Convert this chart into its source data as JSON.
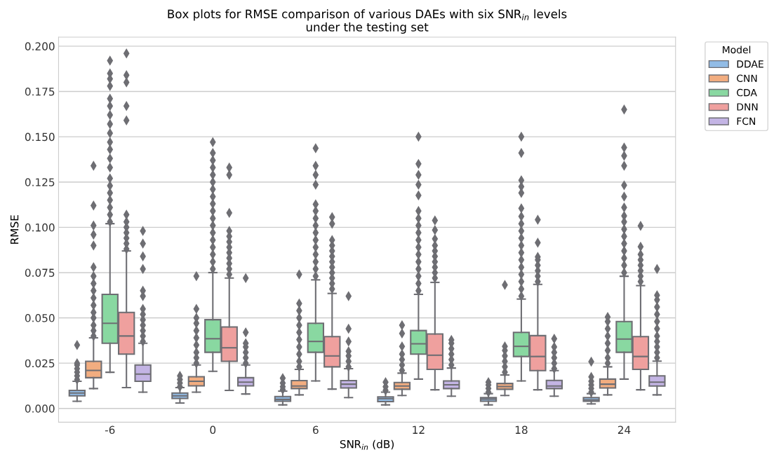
{
  "chart_data": {
    "type": "box",
    "title": "Box plots for RMSE comparison of various DAEs with six SNR$_{in}$ levels\nunder the testing set",
    "xlabel": "SNR$_{in}$ (dB)",
    "ylabel": "RMSE",
    "legend_title": "Model",
    "legend": "top right",
    "grid": "y",
    "marker": "diamond",
    "categories": [
      "-6",
      "0",
      "6",
      "12",
      "18",
      "24"
    ],
    "ylim": [
      -0.0076,
      0.205
    ],
    "yticks": [
      {
        "value": 0,
        "label": "0.000"
      },
      {
        "value": 0.025,
        "label": "0.025"
      },
      {
        "value": 0.05,
        "label": "0.050"
      },
      {
        "value": 0.075,
        "label": "0.075"
      },
      {
        "value": 0.1,
        "label": "0.100"
      },
      {
        "value": 0.125,
        "label": "0.125"
      },
      {
        "value": 0.15,
        "label": "0.150"
      },
      {
        "value": 0.175,
        "label": "0.175"
      },
      {
        "value": 0.2,
        "label": "0.200"
      }
    ],
    "series": [
      {
        "name": "DDAE",
        "color": "#92bce6",
        "boxes": [
          {
            "low": 0.004,
            "q1": 0.007,
            "median": 0.0085,
            "q3": 0.01,
            "high": 0.015,
            "outliers": [
              0.016,
              0.018,
              0.02,
              0.022,
              0.024,
              0.025,
              0.035
            ]
          },
          {
            "low": 0.003,
            "q1": 0.0055,
            "median": 0.007,
            "q3": 0.0085,
            "high": 0.0115,
            "outliers": [
              0.012,
              0.014,
              0.016,
              0.018
            ]
          },
          {
            "low": 0.002,
            "q1": 0.004,
            "median": 0.005,
            "q3": 0.0066,
            "high": 0.0096,
            "outliers": [
              0.0105,
              0.012,
              0.014,
              0.0167
            ]
          },
          {
            "low": 0.002,
            "q1": 0.0038,
            "median": 0.0054,
            "q3": 0.0064,
            "high": 0.009,
            "outliers": [
              0.01,
              0.012,
              0.0145
            ]
          },
          {
            "low": 0.002,
            "q1": 0.004,
            "median": 0.0052,
            "q3": 0.006,
            "high": 0.0082,
            "outliers": [
              0.009,
              0.011,
              0.013,
              0.0145
            ]
          },
          {
            "low": 0.0025,
            "q1": 0.004,
            "median": 0.0047,
            "q3": 0.006,
            "high": 0.0082,
            "outliers": [
              0.009,
              0.011,
              0.013,
              0.015,
              0.0174,
              0.0258
            ]
          }
        ]
      },
      {
        "name": "CNN",
        "color": "#f2ad80",
        "boxes": [
          {
            "low": 0.011,
            "q1": 0.017,
            "median": 0.021,
            "q3": 0.026,
            "high": 0.039,
            "outliers": [
              0.04,
              0.043,
              0.046,
              0.05,
              0.053,
              0.057,
              0.061,
              0.065,
              0.069,
              0.073,
              0.078,
              0.09,
              0.096,
              0.101,
              0.112,
              0.134
            ]
          },
          {
            "low": 0.009,
            "q1": 0.0125,
            "median": 0.015,
            "q3": 0.0175,
            "high": 0.024,
            "outliers": [
              0.025,
              0.028,
              0.031,
              0.035,
              0.039,
              0.043,
              0.047,
              0.05,
              0.055,
              0.073
            ]
          },
          {
            "low": 0.0075,
            "q1": 0.011,
            "median": 0.0124,
            "q3": 0.0154,
            "high": 0.0216,
            "outliers": [
              0.023,
              0.026,
              0.03,
              0.034,
              0.038,
              0.042,
              0.046,
              0.05,
              0.054,
              0.058,
              0.074
            ]
          },
          {
            "low": 0.0072,
            "q1": 0.0106,
            "median": 0.0124,
            "q3": 0.0143,
            "high": 0.0195,
            "outliers": [
              0.021,
              0.024,
              0.027,
              0.03,
              0.0343,
              0.0414,
              0.046
            ]
          },
          {
            "low": 0.0072,
            "q1": 0.0106,
            "median": 0.0121,
            "q3": 0.0138,
            "high": 0.0185,
            "outliers": [
              0.02,
              0.023,
              0.026,
              0.029,
              0.032,
              0.0343,
              0.0682
            ]
          },
          {
            "low": 0.0075,
            "q1": 0.0113,
            "median": 0.0134,
            "q3": 0.0162,
            "high": 0.023,
            "outliers": [
              0.025,
              0.028,
              0.032,
              0.036,
              0.04,
              0.044,
              0.048,
              0.0505
            ]
          }
        ]
      },
      {
        "name": "CDA",
        "color": "#89d8a1",
        "boxes": [
          {
            "low": 0.02,
            "q1": 0.036,
            "median": 0.047,
            "q3": 0.063,
            "high": 0.102,
            "outliers": [
              0.103,
              0.107,
              0.111,
              0.115,
              0.119,
              0.123,
              0.127,
              0.133,
              0.138,
              0.143,
              0.147,
              0.152,
              0.157,
              0.162,
              0.167,
              0.171,
              0.178,
              0.182,
              0.185,
              0.192
            ]
          },
          {
            "low": 0.0205,
            "q1": 0.031,
            "median": 0.0385,
            "q3": 0.049,
            "high": 0.075,
            "outliers": [
              0.077,
              0.081,
              0.085,
              0.089,
              0.093,
              0.097,
              0.101,
              0.105,
              0.109,
              0.113,
              0.117,
              0.121,
              0.125,
              0.129,
              0.133,
              0.137,
              0.141,
              0.147
            ]
          },
          {
            "low": 0.0152,
            "q1": 0.031,
            "median": 0.037,
            "q3": 0.047,
            "high": 0.071,
            "outliers": [
              0.073,
              0.077,
              0.081,
              0.085,
              0.089,
              0.093,
              0.097,
              0.101,
              0.105,
              0.109,
              0.1127,
              0.1235,
              0.129,
              0.134,
              0.1437
            ]
          },
          {
            "low": 0.0162,
            "q1": 0.03,
            "median": 0.0357,
            "q3": 0.043,
            "high": 0.063,
            "outliers": [
              0.065,
              0.069,
              0.073,
              0.077,
              0.081,
              0.085,
              0.089,
              0.093,
              0.097,
              0.101,
              0.105,
              0.109,
              0.1176,
              0.1235,
              0.129,
              0.135,
              0.15
            ]
          },
          {
            "low": 0.0152,
            "q1": 0.0287,
            "median": 0.0343,
            "q3": 0.042,
            "high": 0.0604,
            "outliers": [
              0.062,
              0.066,
              0.07,
              0.074,
              0.078,
              0.082,
              0.086,
              0.09,
              0.094,
              0.098,
              0.102,
              0.106,
              0.1105,
              0.119,
              0.1225,
              0.126,
              0.141,
              0.15
            ]
          },
          {
            "low": 0.0162,
            "q1": 0.031,
            "median": 0.0383,
            "q3": 0.048,
            "high": 0.073,
            "outliers": [
              0.075,
              0.079,
              0.083,
              0.087,
              0.091,
              0.095,
              0.099,
              0.103,
              0.1063,
              0.111,
              0.117,
              0.1232,
              0.134,
              0.1395,
              0.144,
              0.165
            ]
          }
        ]
      },
      {
        "name": "DNN",
        "color": "#efa09e",
        "boxes": [
          {
            "low": 0.0115,
            "q1": 0.03,
            "median": 0.04,
            "q3": 0.053,
            "high": 0.087,
            "outliers": [
              0.088,
              0.091,
              0.094,
              0.097,
              0.1,
              0.103,
              0.107,
              0.159,
              0.167,
              0.18,
              0.184,
              0.196
            ]
          },
          {
            "low": 0.01,
            "q1": 0.026,
            "median": 0.0335,
            "q3": 0.045,
            "high": 0.072,
            "outliers": [
              0.074,
              0.077,
              0.08,
              0.083,
              0.086,
              0.089,
              0.092,
              0.095,
              0.098,
              0.108,
              0.129,
              0.133
            ]
          },
          {
            "low": 0.0107,
            "q1": 0.023,
            "median": 0.029,
            "q3": 0.0397,
            "high": 0.0635,
            "outliers": [
              0.066,
              0.069,
              0.072,
              0.075,
              0.078,
              0.081,
              0.084,
              0.087,
              0.09,
              0.093,
              0.102,
              0.1056
            ]
          },
          {
            "low": 0.0103,
            "q1": 0.0216,
            "median": 0.0294,
            "q3": 0.0411,
            "high": 0.0696,
            "outliers": [
              0.072,
              0.075,
              0.078,
              0.081,
              0.084,
              0.087,
              0.09,
              0.0936,
              0.0985,
              0.1038
            ]
          },
          {
            "low": 0.0103,
            "q1": 0.0209,
            "median": 0.0287,
            "q3": 0.0402,
            "high": 0.0685,
            "outliers": [
              0.07,
              0.073,
              0.076,
              0.079,
              0.082,
              0.0837,
              0.0915,
              0.1042
            ]
          },
          {
            "low": 0.0103,
            "q1": 0.0216,
            "median": 0.0287,
            "q3": 0.0397,
            "high": 0.0678,
            "outliers": [
              0.07,
              0.073,
              0.076,
              0.079,
              0.082,
              0.085,
              0.0893,
              0.1008
            ]
          }
        ]
      },
      {
        "name": "FCN",
        "color": "#c3b4e4",
        "boxes": [
          {
            "low": 0.009,
            "q1": 0.015,
            "median": 0.019,
            "q3": 0.024,
            "high": 0.036,
            "outliers": [
              0.037,
              0.04,
              0.043,
              0.046,
              0.049,
              0.052,
              0.055,
              0.062,
              0.065,
              0.077,
              0.084,
              0.091,
              0.098
            ]
          },
          {
            "low": 0.008,
            "q1": 0.0125,
            "median": 0.0145,
            "q3": 0.017,
            "high": 0.024,
            "outliers": [
              0.025,
              0.028,
              0.031,
              0.034,
              0.036,
              0.042,
              0.072
            ]
          },
          {
            "low": 0.006,
            "q1": 0.0113,
            "median": 0.0134,
            "q3": 0.0154,
            "high": 0.022,
            "outliers": [
              0.023,
              0.026,
              0.029,
              0.0315,
              0.037,
              0.044,
              0.062
            ]
          },
          {
            "low": 0.0068,
            "q1": 0.011,
            "median": 0.0131,
            "q3": 0.0152,
            "high": 0.0223,
            "outliers": [
              0.024,
              0.027,
              0.03,
              0.033,
              0.036,
              0.0378
            ]
          },
          {
            "low": 0.0068,
            "q1": 0.011,
            "median": 0.0124,
            "q3": 0.0155,
            "high": 0.0209,
            "outliers": [
              0.022,
              0.025,
              0.028,
              0.031,
              0.034,
              0.0385
            ]
          },
          {
            "low": 0.0075,
            "q1": 0.0124,
            "median": 0.0145,
            "q3": 0.018,
            "high": 0.0261,
            "outliers": [
              0.028,
              0.031,
              0.034,
              0.037,
              0.04,
              0.044,
              0.048,
              0.052,
              0.056,
              0.06,
              0.0625,
              0.077
            ]
          }
        ]
      }
    ]
  }
}
